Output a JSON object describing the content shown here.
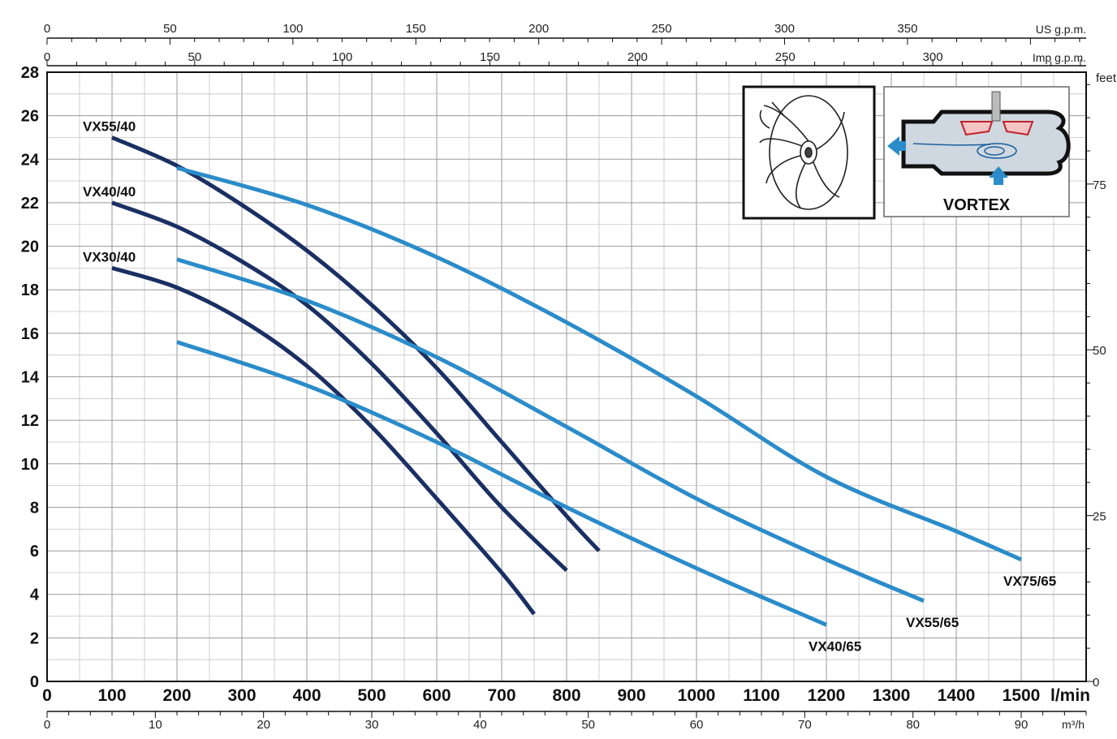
{
  "chart_data": {
    "type": "line",
    "x_axis_bottom": {
      "label": "l/min",
      "range": [
        0,
        1600
      ],
      "ticks": [
        0,
        100,
        200,
        300,
        400,
        500,
        600,
        700,
        800,
        900,
        1000,
        1100,
        1200,
        1300,
        1400,
        1500
      ]
    },
    "x_axis_m3h": {
      "label": "m³/h",
      "range": [
        0,
        96
      ],
      "ticks": [
        0,
        10,
        20,
        30,
        40,
        50,
        60,
        70,
        80,
        90
      ]
    },
    "x_axis_usgpm": {
      "label": "US g.p.m.",
      "ticks": [
        0,
        50,
        100,
        150,
        200,
        250,
        300,
        350
      ]
    },
    "x_axis_impgpm": {
      "label": "Imp g.p.m.",
      "ticks": [
        0,
        50,
        100,
        150,
        200,
        250,
        300
      ]
    },
    "y_axis_left": {
      "label": "",
      "range": [
        0,
        28
      ],
      "ticks": [
        0,
        2,
        4,
        6,
        8,
        10,
        12,
        14,
        16,
        18,
        20,
        22,
        24,
        26,
        28
      ]
    },
    "y_axis_right": {
      "label": "feet",
      "ticks": [
        0,
        25,
        50,
        75
      ]
    },
    "grid": true,
    "series": [
      {
        "name": "VX55/40",
        "color": "#1a2f63",
        "label_pos": "start",
        "x": [
          100,
          200,
          300,
          400,
          500,
          600,
          700,
          800,
          850
        ],
        "y": [
          25,
          23.7,
          21.9,
          19.8,
          17.3,
          14.4,
          11,
          7.6,
          6
        ]
      },
      {
        "name": "VX40/40",
        "color": "#1a2f63",
        "label_pos": "start",
        "x": [
          100,
          200,
          300,
          400,
          500,
          600,
          700,
          800
        ],
        "y": [
          22,
          20.9,
          19.3,
          17.3,
          14.6,
          11.4,
          8,
          5.1
        ]
      },
      {
        "name": "VX30/40",
        "color": "#1a2f63",
        "label_pos": "start",
        "x": [
          100,
          200,
          300,
          400,
          500,
          600,
          700,
          750
        ],
        "y": [
          19,
          18.1,
          16.6,
          14.5,
          11.7,
          8.4,
          5,
          3.1
        ]
      },
      {
        "name": "VX75/65",
        "color": "#2b8cc9",
        "label_pos": "end",
        "x": [
          200,
          400,
          600,
          800,
          1000,
          1200,
          1400,
          1500
        ],
        "y": [
          23.6,
          21.9,
          19.5,
          16.5,
          13.1,
          9.4,
          6.9,
          5.6
        ]
      },
      {
        "name": "VX55/65",
        "color": "#2b8cc9",
        "label_pos": "end",
        "x": [
          200,
          400,
          600,
          800,
          1000,
          1200,
          1350
        ],
        "y": [
          19.4,
          17.5,
          14.9,
          11.7,
          8.4,
          5.6,
          3.7
        ]
      },
      {
        "name": "VX40/65",
        "color": "#2b8cc9",
        "label_pos": "end",
        "x": [
          200,
          400,
          600,
          800,
          1000,
          1200
        ],
        "y": [
          15.6,
          13.6,
          11,
          8,
          5.2,
          2.6
        ]
      }
    ]
  },
  "inset": {
    "label": "VORTEX",
    "impeller_icon": "impeller-icon",
    "diagram_icon": "vortex-pump-icon"
  }
}
